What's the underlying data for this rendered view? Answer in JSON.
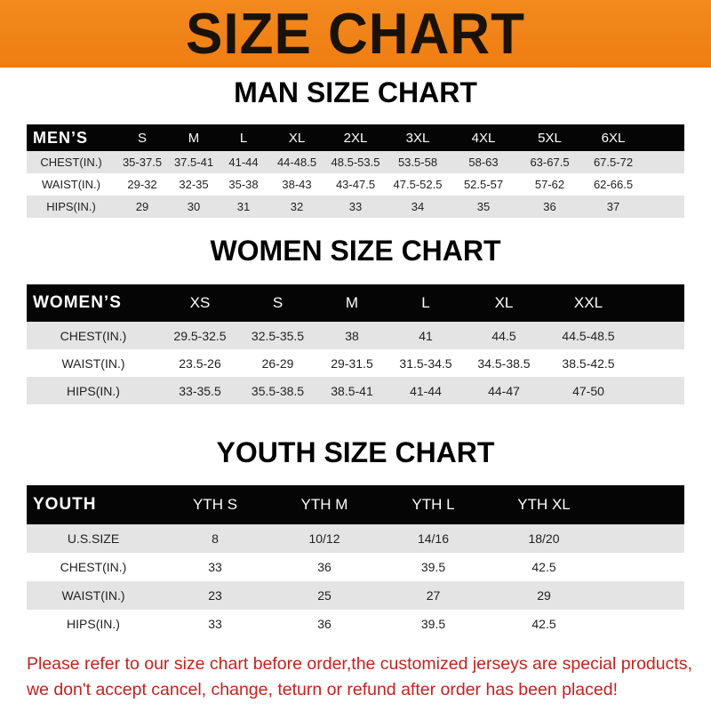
{
  "banner": "SIZE CHART",
  "men": {
    "title": "MAN SIZE CHART",
    "header": [
      "MEN’S",
      "S",
      "M",
      "L",
      "XL",
      "2XL",
      "3XL",
      "4XL",
      "5XL",
      "6XL"
    ],
    "rows": [
      [
        "CHEST(IN.)",
        "35-37.5",
        "37.5-41",
        "41-44",
        "44-48.5",
        "48.5-53.5",
        "53.5-58",
        "58-63",
        "63-67.5",
        "67.5-72"
      ],
      [
        "WAIST(IN.)",
        "29-32",
        "32-35",
        "35-38",
        "38-43",
        "43-47.5",
        "47.5-52.5",
        "52.5-57",
        "57-62",
        "62-66.5"
      ],
      [
        "HIPS(IN.)",
        "29",
        "30",
        "31",
        "32",
        "33",
        "34",
        "35",
        "36",
        "37"
      ]
    ]
  },
  "women": {
    "title": "WOMEN SIZE CHART",
    "header": [
      "WOMEN’S",
      "XS",
      "S",
      "M",
      "L",
      "XL",
      "XXL"
    ],
    "rows": [
      [
        "CHEST(IN.)",
        "29.5-32.5",
        "32.5-35.5",
        "38",
        "41",
        "44.5",
        "44.5-48.5"
      ],
      [
        "WAIST(IN.)",
        "23.5-26",
        "26-29",
        "29-31.5",
        "31.5-34.5",
        "34.5-38.5",
        "38.5-42.5"
      ],
      [
        "HIPS(IN.)",
        "33-35.5",
        "35.5-38.5",
        "38.5-41",
        "41-44",
        "44-47",
        "47-50"
      ]
    ]
  },
  "youth": {
    "title": "YOUTH SIZE CHART",
    "header": [
      "YOUTH",
      "YTH S",
      "YTH M",
      "YTH L",
      "YTH XL"
    ],
    "rows": [
      [
        "U.S.SIZE",
        "8",
        "10/12",
        "14/16",
        "18/20"
      ],
      [
        "CHEST(IN.)",
        "33",
        "36",
        "39.5",
        "42.5"
      ],
      [
        "WAIST(IN.)",
        "23",
        "25",
        "27",
        "29"
      ],
      [
        "HIPS(IN.)",
        "33",
        "36",
        "39.5",
        "42.5"
      ]
    ]
  },
  "note": [
    "Please refer to our size chart before order,the customized jerseys are special products,",
    "we don't accept cancel, change, teturn or refund after order has been placed!"
  ],
  "colors": {
    "banner": "#f0821a",
    "header_row": "#050505",
    "stripe": "#e4e4e4",
    "note": "#c4221f"
  }
}
